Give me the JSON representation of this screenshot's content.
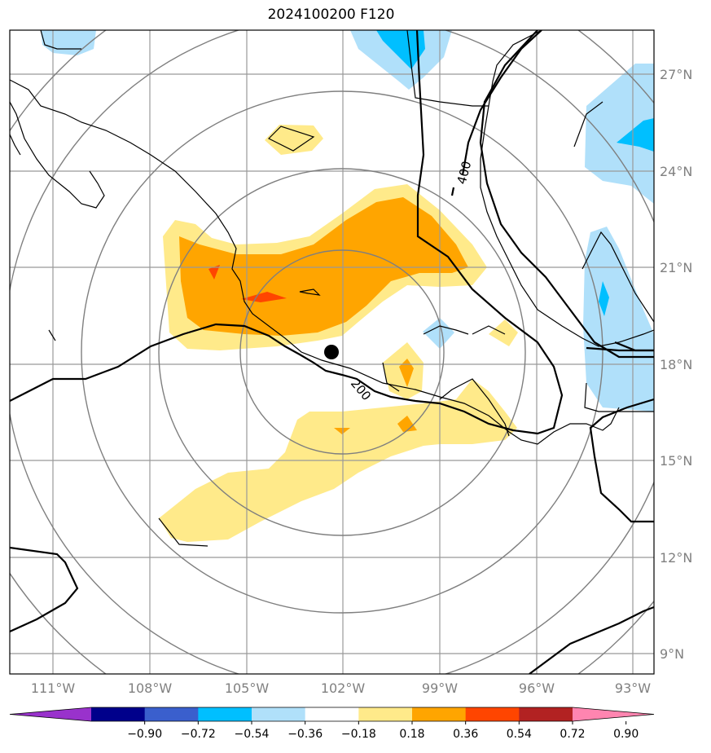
{
  "title": "2024100200 F120",
  "map": {
    "lon_labels": [
      "111°W",
      "108°W",
      "105°W",
      "102°W",
      "99°W",
      "96°W",
      "93°W"
    ],
    "lat_labels": [
      "27°N",
      "24°N",
      "21°N",
      "18°N",
      "15°N",
      "12°N",
      "9°N"
    ],
    "contour_labels": [
      "400",
      "200"
    ],
    "center_marker": "storm-center-dot"
  },
  "colorbar": {
    "ticks": [
      "−0.90",
      "−0.72",
      "−0.54",
      "−0.36",
      "−0.18",
      "0.18",
      "0.36",
      "0.54",
      "0.72",
      "0.90"
    ],
    "colors": [
      "#9932cc",
      "#00008b",
      "#3a5fcd",
      "#00bfff",
      "#b0e0fa",
      "#ffffff",
      "#ffea8a",
      "#ffa500",
      "#ff4500",
      "#b22222",
      "#ff85b0"
    ]
  }
}
